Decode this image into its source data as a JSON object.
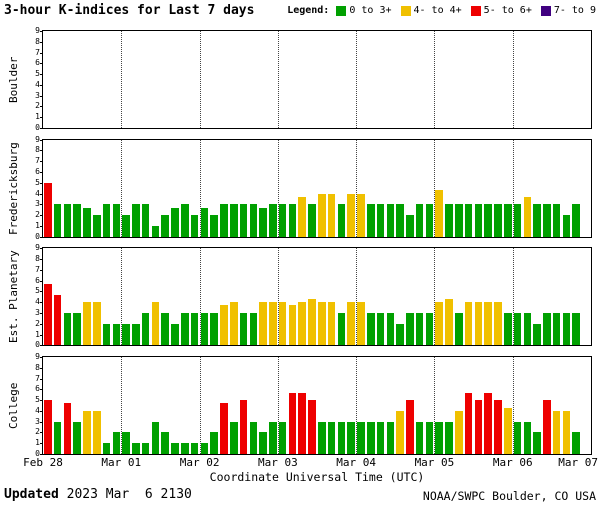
{
  "header": {
    "title": "3-hour K-indices for Last 7 days"
  },
  "legend": {
    "label": "Legend:",
    "items": [
      {
        "label": "0 to 3+",
        "color": "#00a000"
      },
      {
        "label": "4- to 4+",
        "color": "#f0c000"
      },
      {
        "label": "5- to 6+",
        "color": "#ee0000"
      },
      {
        "label": "7- to 9",
        "color": "#400080"
      }
    ]
  },
  "footer": {
    "updated_label": "Updated",
    "updated_value": " 2023 Mar  6 2130",
    "credit": "NOAA/SWPC Boulder, CO USA"
  },
  "chart_data": {
    "type": "bar",
    "title": "3-hour K-indices for Last 7 days",
    "xlabel": "Coordinate Universal Time (UTC)",
    "x_ticks": [
      "Feb 28",
      "Mar 01",
      "Mar 02",
      "Mar 03",
      "Mar 04",
      "Mar 05",
      "Mar 06",
      "Mar 07"
    ],
    "y_ticks": [
      0,
      1,
      2,
      3,
      4,
      5,
      6,
      7,
      8,
      9
    ],
    "ylim": [
      0,
      9
    ],
    "days": 7,
    "bars_per_day": 8,
    "interval_hours": 3,
    "colors": {
      "green": "#00a000",
      "yellow": "#f0c000",
      "red": "#ee0000",
      "purple": "#400080"
    },
    "color_bands": {
      "green": "0 to 3+",
      "yellow": "4- to 4+",
      "red": "5- to 6+",
      "purple": "7- to 9"
    },
    "panels": [
      {
        "station": "Boulder",
        "values": []
      },
      {
        "station": "Fredericksburg",
        "values": [
          5,
          3,
          3,
          3,
          2.7,
          2,
          3,
          3,
          2,
          3,
          3,
          1,
          2,
          2.7,
          3,
          2,
          2.7,
          2,
          3,
          3,
          3,
          3,
          2.7,
          3,
          3,
          3,
          3.7,
          3,
          4,
          4,
          3,
          4,
          4,
          3,
          3,
          3,
          3,
          2,
          3,
          3,
          4.3,
          3,
          3,
          3,
          3,
          3,
          3,
          3,
          3,
          3.7,
          3,
          3,
          3,
          2,
          3
        ]
      },
      {
        "station": "Est. Planetary",
        "values": [
          5.7,
          4.7,
          3,
          3,
          4,
          4,
          2,
          2,
          2,
          2,
          3,
          4,
          3,
          2,
          3,
          3,
          3,
          3,
          3.7,
          4,
          3,
          3,
          4,
          4,
          4,
          3.7,
          4,
          4.3,
          4,
          4,
          3,
          4,
          4,
          3,
          3,
          3,
          2,
          3,
          3,
          3,
          4,
          4.3,
          3,
          4,
          4,
          4,
          4,
          3,
          3,
          3,
          2,
          3,
          3,
          3,
          3
        ]
      },
      {
        "station": "College",
        "values": [
          5,
          3,
          4.7,
          3,
          4,
          4,
          1,
          2,
          2,
          1,
          1,
          3,
          2,
          1,
          1,
          1,
          1,
          2,
          4.7,
          3,
          5,
          3,
          2,
          3,
          3,
          5.7,
          5.7,
          5,
          3,
          3,
          3,
          3,
          3,
          3,
          3,
          3,
          4,
          5,
          3,
          3,
          3,
          3,
          4,
          5.7,
          5,
          5.7,
          5,
          4.3,
          3,
          3,
          2,
          5,
          4,
          4,
          2
        ]
      }
    ]
  }
}
